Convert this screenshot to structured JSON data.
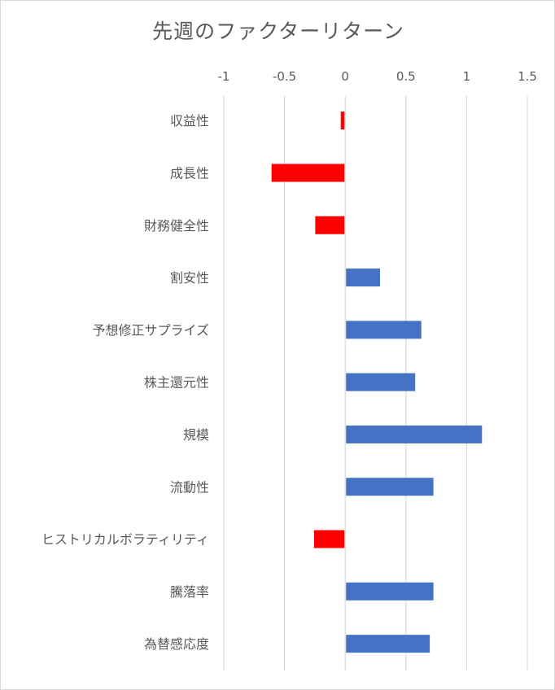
{
  "chart_data": {
    "type": "bar",
    "orientation": "horizontal",
    "title": "先週のファクターリターン",
    "xlabel": "",
    "ylabel": "",
    "xlim": [
      -1,
      1.5
    ],
    "ticks": [
      -1,
      -0.5,
      0,
      0.5,
      1,
      1.5
    ],
    "tick_labels": [
      "-1",
      "-0.5",
      "0",
      "0.5",
      "1",
      "1.5"
    ],
    "axis_position": "top",
    "grid": true,
    "categories": [
      "収益性",
      "成長性",
      "財務健全性",
      "割安性",
      "予想修正サプライズ",
      "株主還元性",
      "規模",
      "流動性",
      "ヒストリカルボラティリティ",
      "騰落率",
      "為替感応度"
    ],
    "values": [
      -0.03,
      -0.6,
      -0.24,
      0.28,
      0.62,
      0.57,
      1.12,
      0.72,
      -0.25,
      0.72,
      0.69
    ],
    "colors": {
      "positive": "#4472c4",
      "negative": "#ff0000",
      "gridline": "#d9d9d9",
      "text": "#595959"
    }
  }
}
